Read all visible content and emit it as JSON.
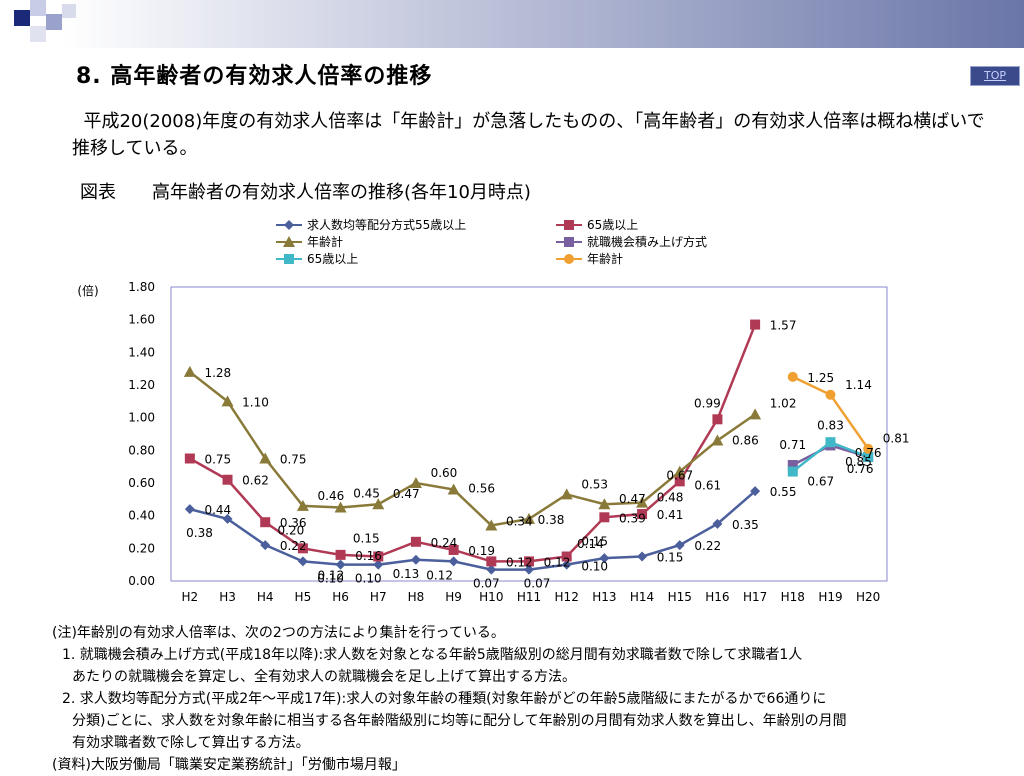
{
  "header": {
    "title": "8. 高年齢者の有効求人倍率の推移",
    "top_link": "TOP"
  },
  "intro_text": "平成20(2008)年度の有効求人倍率は「年齢計」が急落したものの、「高年齢者」の有効求人倍率は概ね横ばいで推移している。",
  "figure_title": "図表　　高年齢者の有効求人倍率の推移(各年10月時点)",
  "chart_data": {
    "type": "line",
    "ylabel": "(倍)",
    "ylim": [
      0,
      1.8
    ],
    "yticks": [
      "0.00",
      "0.20",
      "0.40",
      "0.60",
      "0.80",
      "1.00",
      "1.20",
      "1.40",
      "1.60",
      "1.80"
    ],
    "categories": [
      "H2",
      "H3",
      "H4",
      "H5",
      "H6",
      "H7",
      "H8",
      "H9",
      "H10",
      "H11",
      "H12",
      "H13",
      "H14",
      "H15",
      "H16",
      "H17",
      "H18",
      "H19",
      "H20"
    ],
    "legend_position": "top",
    "series": [
      {
        "name": "求人数均等配分方式55歳以上",
        "color": "#4a5f9c",
        "marker": "diamond",
        "values": [
          0.44,
          0.38,
          0.22,
          0.12,
          0.1,
          0.1,
          0.13,
          0.12,
          0.07,
          0.07,
          0.1,
          0.14,
          0.15,
          0.22,
          0.35,
          0.55,
          null,
          null,
          null
        ],
        "labels": [
          "0.44",
          "0.38",
          "0.22",
          "0.12",
          "0.10",
          "0.10",
          "0.13",
          "0.12",
          "0.07",
          "0.07",
          "0.10",
          "0.14",
          "0.15",
          "0.22",
          "0.35",
          "0.55",
          "",
          "",
          ""
        ]
      },
      {
        "name": "65歳以上",
        "color": "#b03a55",
        "marker": "square",
        "values": [
          0.75,
          0.62,
          0.36,
          0.2,
          0.16,
          0.15,
          0.24,
          0.19,
          0.12,
          0.12,
          0.15,
          0.39,
          0.41,
          0.61,
          0.99,
          1.57,
          null,
          null,
          null
        ],
        "labels": [
          "0.75",
          "0.62",
          "0.36",
          "0.20",
          "0.16",
          "0.15",
          "0.24",
          "0.19",
          "0.12",
          "0.12",
          "0.15",
          "0.39",
          "0.41",
          "0.61",
          "0.99",
          "1.57",
          "",
          "",
          ""
        ]
      },
      {
        "name": "年齢計",
        "color": "#8a7a3a",
        "marker": "triangle",
        "values": [
          1.28,
          1.1,
          0.75,
          0.46,
          0.45,
          0.47,
          0.6,
          0.56,
          0.34,
          0.38,
          0.53,
          0.47,
          0.48,
          0.67,
          0.86,
          1.02,
          null,
          null,
          null
        ],
        "labels": [
          "1.28",
          "1.10",
          "0.75",
          "0.46",
          "0.45",
          "0.47",
          "0.60",
          "0.56",
          "0.34",
          "0.38",
          "0.53",
          "0.47",
          "0.48",
          "0.67",
          "0.86",
          "1.02",
          "",
          "",
          ""
        ]
      },
      {
        "name": "就職機会積み上げ方式",
        "color": "#7a5fa0",
        "marker": "square",
        "values": [
          null,
          null,
          null,
          null,
          null,
          null,
          null,
          null,
          null,
          null,
          null,
          null,
          null,
          null,
          null,
          null,
          0.71,
          0.83,
          0.76
        ],
        "labels": [
          "",
          "",
          "",
          "",
          "",
          "",
          "",
          "",
          "",
          "",
          "",
          "",
          "",
          "",
          "",
          "",
          "0.71",
          "0.83",
          "0.76"
        ]
      },
      {
        "name": "65歳以上",
        "color": "#40b8c8",
        "marker": "square",
        "values": [
          null,
          null,
          null,
          null,
          null,
          null,
          null,
          null,
          null,
          null,
          null,
          null,
          null,
          null,
          null,
          null,
          0.67,
          0.85,
          0.76
        ],
        "labels": [
          "",
          "",
          "",
          "",
          "",
          "",
          "",
          "",
          "",
          "",
          "",
          "",
          "",
          "",
          "",
          "",
          "0.67",
          "0.85",
          "0.76"
        ]
      },
      {
        "name": "年齢計",
        "color": "#f0a030",
        "marker": "circle",
        "values": [
          null,
          null,
          null,
          null,
          null,
          null,
          null,
          null,
          null,
          null,
          null,
          null,
          null,
          null,
          null,
          null,
          1.25,
          1.14,
          0.81
        ],
        "labels": [
          "",
          "",
          "",
          "",
          "",
          "",
          "",
          "",
          "",
          "",
          "",
          "",
          "",
          "",
          "",
          "",
          "1.25",
          "1.14",
          "0.81"
        ]
      }
    ]
  },
  "notes": {
    "lines": [
      "(注)年齢別の有効求人倍率は、次の2つの方法により集計を行っている。",
      "1. 就職機会積み上げ方式(平成18年以降):求人数を対象となる年齢5歳階級別の総月間有効求職者数で除して求職者1人",
      "あたりの就職機会を算定し、全有効求人の就職機会を足し上げて算出する方法。",
      "2. 求人数均等配分方式(平成2年〜平成17年):求人の対象年齢の種類(対象年齢がどの年齢5歳階級にまたがるかで66通りに",
      "分類)ごとに、求人数を対象年齢に相当する各年齢階級別に均等に配分して年齢別の月間有効求人数を算出し、年齢別の月間",
      "有効求職者数で除して算出する方法。",
      "(資料)大阪労働局「職業安定業務統計」「労働市場月報」"
    ]
  }
}
